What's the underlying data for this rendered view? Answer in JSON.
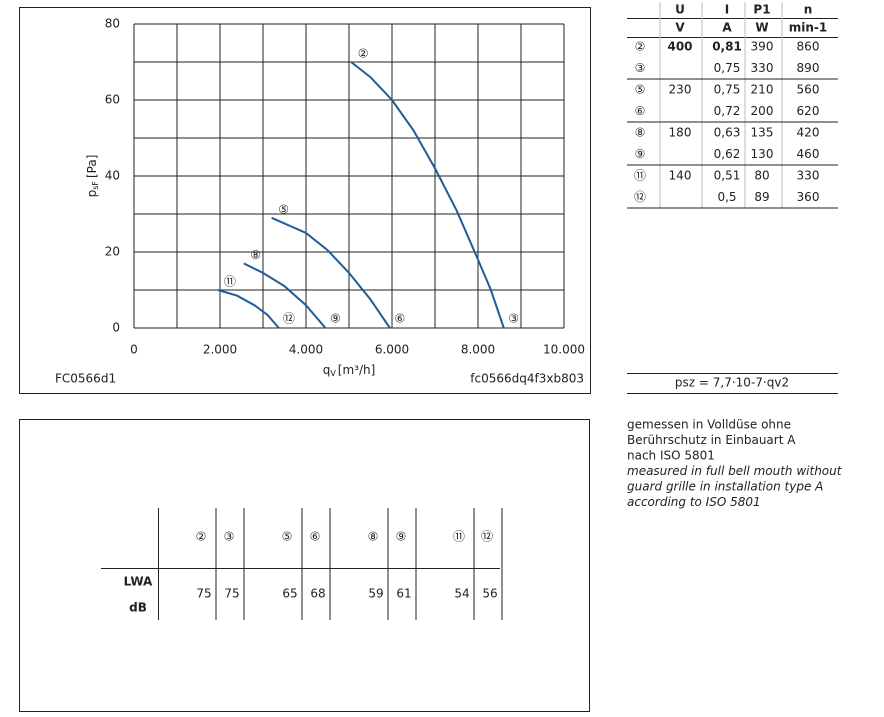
{
  "chart_data": {
    "type": "line",
    "ylabel": {
      "main": "p",
      "sub": "sF",
      "unit": "[Pa]"
    },
    "xlabel": {
      "main": "q",
      "sub": "V",
      "unit": "[m³/h]"
    },
    "code_left": "FC0566d1",
    "code_right": "fc0566dq4f3xb803",
    "xlim": [
      0,
      10000
    ],
    "ylim": [
      0,
      80
    ],
    "xticks": [
      0,
      {
        "value": 2000,
        "label": "2.000"
      },
      {
        "value": 4000,
        "label": "4.000"
      },
      {
        "value": 6000,
        "label": "6.000"
      },
      {
        "value": 8000,
        "label": "8.000"
      },
      {
        "value": 10000,
        "label": "10.000"
      }
    ],
    "yticks": [
      0,
      20,
      40,
      60,
      80
    ],
    "xminorticks": [
      1000,
      3000,
      5000,
      7000,
      9000
    ],
    "yminorticks": [
      10,
      30,
      50,
      70
    ],
    "grid": true,
    "series": [
      {
        "start_label": "②",
        "end_label": "③",
        "color": "#1f5c99",
        "x": [
          5050,
          5500,
          6000,
          6500,
          7000,
          7500,
          8000,
          8300,
          8600
        ],
        "values": [
          70,
          66,
          60,
          52,
          42,
          31,
          18,
          10,
          0
        ]
      },
      {
        "start_label": "⑤",
        "end_label": "⑥",
        "color": "#1f5c99",
        "x": [
          3200,
          4000,
          4500,
          5000,
          5500,
          5950
        ],
        "values": [
          29,
          25,
          20.5,
          14.5,
          7.5,
          0
        ]
      },
      {
        "start_label": "⑧",
        "end_label": "⑨",
        "color": "#1f5c99",
        "x": [
          2550,
          3000,
          3500,
          4000,
          4450
        ],
        "values": [
          17,
          14.5,
          11,
          6,
          0
        ]
      },
      {
        "start_label": "⑪",
        "end_label": "⑫",
        "color": "#1f5c99",
        "x": [
          1950,
          2400,
          2800,
          3100,
          3370
        ],
        "values": [
          10,
          8.5,
          6,
          3.5,
          0
        ]
      }
    ]
  },
  "table": {
    "header": [
      "",
      "U",
      "I",
      "P1",
      "n"
    ],
    "units": [
      "",
      "V",
      "A",
      "W",
      "min-1"
    ],
    "rows": [
      [
        "②",
        "400",
        "0,81",
        "390",
        "860"
      ],
      [
        "③",
        "",
        "0,75",
        "330",
        "890"
      ],
      [
        "⑤",
        "230",
        "0,75",
        "210",
        "560"
      ],
      [
        "⑥",
        "",
        "0,72",
        "200",
        "620"
      ],
      [
        "⑧",
        "180",
        "0,63",
        "135",
        "420"
      ],
      [
        "⑨",
        "",
        "0,62",
        "130",
        "460"
      ],
      [
        "⑪",
        "140",
        "0,51",
        "80",
        "330"
      ],
      [
        "⑫",
        "",
        "0,5",
        "89",
        "360"
      ]
    ]
  },
  "formula": "psz = 7,7·10-7·qv2",
  "notes": [
    "gemessen in Volldüse ohne",
    "Berührschutz in Einbauart A",
    "nach ISO 5801",
    "measured in full bell mouth without",
    "guard grille in installation type A",
    "according to ISO 5801"
  ],
  "sound_table": {
    "row_label": "LWA",
    "unit": "dB",
    "columns": [
      "②",
      "③",
      "⑤",
      "⑥",
      "⑧",
      "⑨",
      "⑪",
      "⑫"
    ],
    "values": [
      "75",
      "75",
      "65",
      "68",
      "59",
      "61",
      "54",
      "56"
    ]
  }
}
